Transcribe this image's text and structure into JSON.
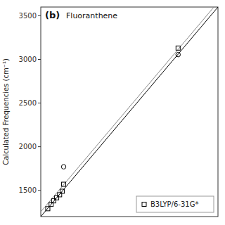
{
  "chart_data": {
    "type": "scatter",
    "ylabel": "Calculated Frequencies (cm⁻¹)",
    "annotations": [
      "(b)",
      "Fluoranthene"
    ],
    "xlim": [
      1200,
      3600
    ],
    "ylim": [
      1200,
      3600
    ],
    "yticks": [
      1500,
      2000,
      2500,
      3000,
      3500
    ],
    "tick_labels": "y",
    "grid": false,
    "legend": "lower right",
    "series": [
      {
        "name": "B3LYP/6-31G*",
        "marker": "square",
        "color": "#000000",
        "x": [
          1295,
          1340,
          1375,
          1415,
          1455,
          1490,
          1510,
          3060
        ],
        "values": [
          1290,
          1340,
          1380,
          1415,
          1450,
          1490,
          1570,
          3130
        ]
      },
      {
        "marker": "circle",
        "color": "#000000",
        "x": [
          1510,
          3060
        ],
        "values": [
          1770,
          3055
        ]
      }
    ],
    "lines": [
      {
        "slope": 1.0,
        "intercept": 0,
        "color": "#000000"
      },
      {
        "slope": 1.0,
        "intercept": 55,
        "color": "#888888"
      }
    ]
  }
}
